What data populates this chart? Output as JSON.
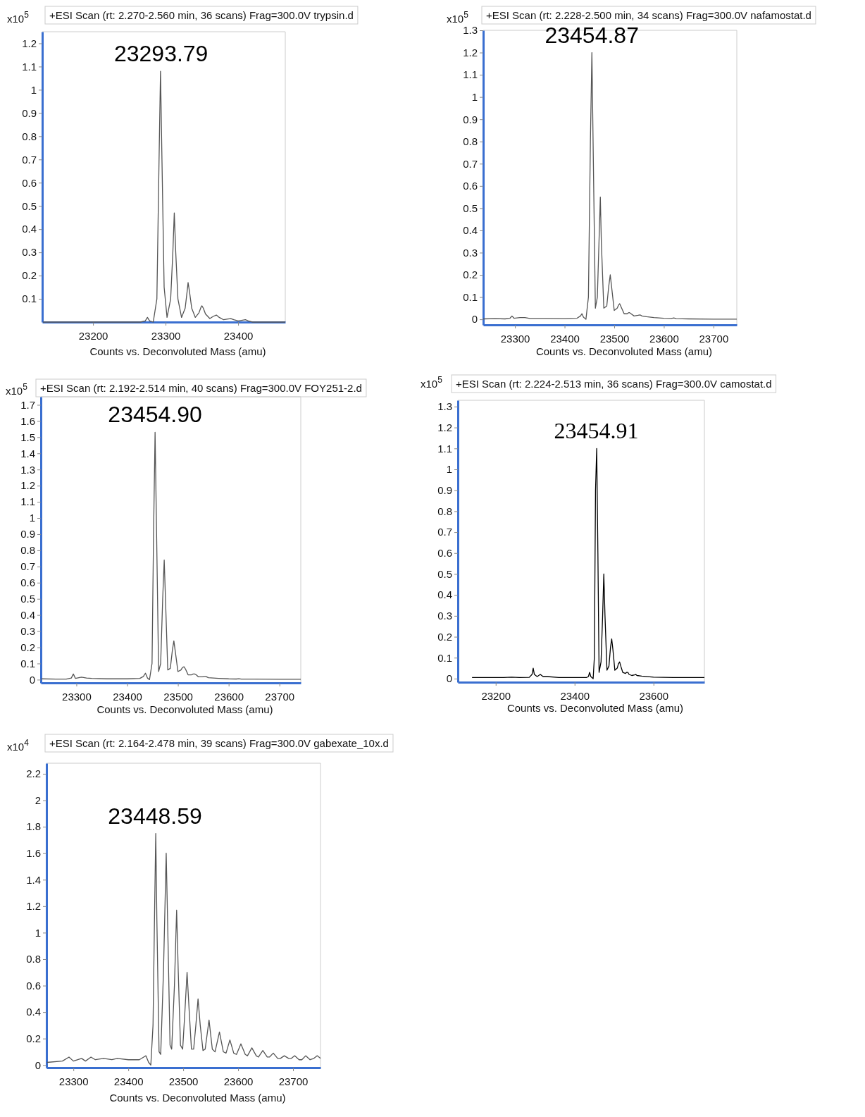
{
  "chart_data": [
    {
      "type": "line",
      "title": "+ESI Scan (rt: 2.270-2.560 min, 36 scans) Frag=300.0V trypsin.d",
      "xlabel": "Counts vs. Deconvoluted Mass (amu)",
      "ylabel": "x10$^{5}$",
      "annotations": [
        {
          "text": "23293.79",
          "x": 23293.79,
          "y": 1.08
        }
      ],
      "xlim": [
        23130,
        23465
      ],
      "ylim": [
        0,
        1.25
      ],
      "xticks": [
        23200,
        23300,
        23400
      ],
      "yticks": [
        0.1,
        0.2,
        0.3,
        0.4,
        0.5,
        0.6,
        0.7,
        0.8,
        0.9,
        1,
        1.1,
        1.2
      ],
      "series": [
        {
          "color": "#555555",
          "x": [
            23131,
            23200,
            23265,
            23272,
            23275,
            23278,
            23283,
            23288,
            23291,
            23293,
            23295,
            23298,
            23302,
            23307,
            23310,
            23312,
            23314,
            23317,
            23322,
            23327,
            23330,
            23331,
            23333,
            23336,
            23341,
            23346,
            23349,
            23350,
            23352,
            23355,
            23361,
            23366,
            23370,
            23374,
            23380,
            23386,
            23390,
            23394,
            23400,
            23406,
            23410,
            23414,
            23420,
            23465
          ],
          "values": [
            0,
            0,
            0,
            0.005,
            0.02,
            0.005,
            0,
            0.1,
            0.7,
            1.08,
            0.7,
            0.15,
            0.02,
            0.1,
            0.3,
            0.47,
            0.3,
            0.1,
            0.02,
            0.06,
            0.14,
            0.17,
            0.13,
            0.06,
            0.02,
            0.04,
            0.065,
            0.07,
            0.06,
            0.035,
            0.015,
            0.025,
            0.03,
            0.02,
            0.01,
            0.013,
            0.015,
            0.01,
            0.005,
            0.008,
            0.01,
            0.005,
            0,
            0
          ]
        }
      ]
    },
    {
      "type": "line",
      "title": "+ESI Scan (rt: 2.228-2.500 min, 34 scans) Frag=300.0V nafamostat.d",
      "xlabel": "Counts vs. Deconvoluted Mass (amu)",
      "ylabel": "x10$^{5}$",
      "annotations": [
        {
          "text": "23454.87",
          "x": 23454.87,
          "y": 1.2
        }
      ],
      "xlim": [
        23236,
        23747
      ],
      "ylim": [
        -0.025,
        1.3
      ],
      "xticks": [
        23300,
        23400,
        23500,
        23600,
        23700
      ],
      "yticks": [
        0,
        0.1,
        0.2,
        0.3,
        0.4,
        0.5,
        0.6,
        0.7,
        0.8,
        0.9,
        1,
        1.1,
        1.2,
        1.3
      ],
      "series": [
        {
          "color": "#555555",
          "x": [
            23236,
            23260,
            23280,
            23290,
            23294,
            23298,
            23310,
            23320,
            23330,
            23360,
            23400,
            23425,
            23432,
            23435,
            23438,
            23443,
            23448,
            23452,
            23455,
            23458,
            23462,
            23466,
            23470,
            23472,
            23474,
            23479,
            23485,
            23489,
            23492,
            23495,
            23500,
            23506,
            23509,
            23511,
            23514,
            23520,
            23526,
            23529,
            23531,
            23534,
            23540,
            23548,
            23552,
            23556,
            23565,
            23580,
            23600,
            23615,
            23620,
            23625,
            23650,
            23700,
            23747
          ],
          "values": [
            0.002,
            0.003,
            0.002,
            0.005,
            0.015,
            0.005,
            0.008,
            0.008,
            0.004,
            0.004,
            0.003,
            0.005,
            0.015,
            0.025,
            0.01,
            0.0,
            0.1,
            0.8,
            1.2,
            0.7,
            0.05,
            0.1,
            0.4,
            0.55,
            0.35,
            0.05,
            0.06,
            0.15,
            0.2,
            0.14,
            0.04,
            0.05,
            0.065,
            0.07,
            0.055,
            0.025,
            0.025,
            0.03,
            0.03,
            0.025,
            0.015,
            0.018,
            0.02,
            0.015,
            0.012,
            0.008,
            0.005,
            0.004,
            0.006,
            0.003,
            0.002,
            0.001,
            0.001
          ]
        }
      ]
    },
    {
      "type": "line",
      "title": "+ESI Scan (rt: 2.192-2.514 min, 40 scans) Frag=300.0V FOY251-2.d",
      "xlabel": "Counts vs. Deconvoluted Mass (amu)",
      "ylabel": "x10$^{5}$",
      "annotations": [
        {
          "text": "23454.90",
          "x": 23454.9,
          "y": 1.53
        }
      ],
      "xlim": [
        23230,
        23742
      ],
      "ylim": [
        -0.02,
        1.75
      ],
      "xticks": [
        23300,
        23400,
        23500,
        23600,
        23700
      ],
      "yticks": [
        0,
        0.1,
        0.2,
        0.3,
        0.4,
        0.5,
        0.6,
        0.7,
        0.8,
        0.9,
        1,
        1.1,
        1.2,
        1.3,
        1.4,
        1.5,
        1.6,
        1.7
      ],
      "series": [
        {
          "color": "#555555",
          "x": [
            23231,
            23260,
            23280,
            23290,
            23294,
            23298,
            23310,
            23320,
            23330,
            23360,
            23400,
            23425,
            23432,
            23436,
            23440,
            23444,
            23449,
            23452,
            23455,
            23458,
            23462,
            23466,
            23470,
            23473,
            23476,
            23480,
            23485,
            23489,
            23492,
            23495,
            23500,
            23506,
            23509,
            23512,
            23515,
            23520,
            23527,
            23530,
            23533,
            23536,
            23540,
            23548,
            23552,
            23555,
            23560,
            23580,
            23600,
            23615,
            23620,
            23625,
            23650,
            23700,
            23742
          ],
          "values": [
            0.005,
            0.003,
            0.003,
            0.01,
            0.035,
            0.008,
            0.015,
            0.01,
            0.008,
            0.005,
            0.005,
            0.008,
            0.02,
            0.04,
            0.01,
            0.0,
            0.1,
            0.9,
            1.53,
            0.9,
            0.05,
            0.1,
            0.5,
            0.74,
            0.45,
            0.06,
            0.07,
            0.18,
            0.24,
            0.17,
            0.05,
            0.06,
            0.075,
            0.08,
            0.065,
            0.03,
            0.03,
            0.035,
            0.035,
            0.03,
            0.018,
            0.018,
            0.02,
            0.02,
            0.012,
            0.008,
            0.005,
            0.004,
            0.006,
            0.003,
            0.003,
            0.002,
            0.002
          ]
        }
      ]
    },
    {
      "type": "line",
      "title": "+ESI Scan (rt: 2.224-2.513 min, 36 scans) Frag=300.0V camostat.d",
      "xlabel": "Counts vs. Deconvoluted Mass (amu)",
      "ylabel": "x10$^{5}$",
      "annotations": [
        {
          "text": "23454.91",
          "x": 23454.91,
          "y": 1.1
        }
      ],
      "xlim": [
        23104,
        23729
      ],
      "ylim": [
        -0.017,
        1.33
      ],
      "xticks": [
        23200,
        23400,
        23600
      ],
      "yticks": [
        0,
        0.1,
        0.2,
        0.3,
        0.4,
        0.5,
        0.6,
        0.7,
        0.8,
        0.9,
        1,
        1.1,
        1.2,
        1.3
      ],
      "series": [
        {
          "color": "#000000",
          "x": [
            23140,
            23180,
            23220,
            23240,
            23260,
            23285,
            23292,
            23295,
            23298,
            23305,
            23313,
            23320,
            23330,
            23360,
            23400,
            23430,
            23435,
            23438,
            23441,
            23447,
            23450,
            23453,
            23456,
            23459,
            23462,
            23467,
            23471,
            23474,
            23477,
            23482,
            23487,
            23491,
            23494,
            23497,
            23502,
            23508,
            23511,
            23514,
            23517,
            23522,
            23529,
            23532,
            23535,
            23538,
            23545,
            23552,
            23555,
            23558,
            23570,
            23600,
            23650,
            23700,
            23729
          ],
          "values": [
            0.005,
            0.005,
            0.005,
            0.007,
            0.005,
            0.006,
            0.02,
            0.05,
            0.02,
            0.01,
            0.02,
            0.01,
            0.01,
            0.005,
            0.005,
            0.005,
            0.01,
            0.03,
            0.01,
            0.0,
            0.1,
            0.9,
            1.1,
            0.6,
            0.03,
            0.08,
            0.3,
            0.5,
            0.3,
            0.04,
            0.06,
            0.15,
            0.19,
            0.14,
            0.04,
            0.05,
            0.07,
            0.08,
            0.06,
            0.03,
            0.025,
            0.03,
            0.03,
            0.02,
            0.015,
            0.018,
            0.02,
            0.015,
            0.012,
            0.007,
            0.005,
            0.005,
            0.005
          ]
        }
      ]
    },
    {
      "type": "line",
      "title": "+ESI Scan (rt: 2.164-2.478 min, 39 scans) Frag=300.0V gabexate_10x.d",
      "xlabel": "Counts vs. Deconvoluted Mass (amu)",
      "ylabel": "x10$^{4}$",
      "annotations": [
        {
          "text": "23448.59",
          "x": 23448.59,
          "y": 1.75
        }
      ],
      "xlim": [
        23251,
        23750
      ],
      "ylim": [
        -0.02,
        2.28
      ],
      "xticks": [
        23300,
        23400,
        23500,
        23600,
        23700
      ],
      "yticks": [
        0,
        0.2,
        0.4,
        0.6,
        0.8,
        1,
        1.2,
        1.4,
        1.6,
        1.8,
        2,
        2.2
      ],
      "series": [
        {
          "color": "#555555",
          "x": [
            23252,
            23280,
            23292,
            23300,
            23315,
            23322,
            23332,
            23340,
            23355,
            23370,
            23380,
            23400,
            23420,
            23428,
            23432,
            23437,
            23441,
            23445,
            23448,
            23450,
            23452,
            23456,
            23459,
            23464,
            23469,
            23472,
            23476,
            23479,
            23484,
            23488,
            23491,
            23495,
            23499,
            23503,
            23507,
            23511,
            23515,
            23519,
            23523,
            23527,
            23531,
            23536,
            23540,
            23547,
            23553,
            23558,
            23566,
            23573,
            23578,
            23585,
            23592,
            23597,
            23605,
            23613,
            23617,
            23625,
            23633,
            23637,
            23645,
            23653,
            23657,
            23664,
            23672,
            23677,
            23684,
            23692,
            23697,
            23703,
            23711,
            23716,
            23723,
            23731,
            23738,
            23744,
            23750
          ],
          "values": [
            0.02,
            0.03,
            0.06,
            0.03,
            0.05,
            0.03,
            0.06,
            0.04,
            0.05,
            0.04,
            0.05,
            0.04,
            0.04,
            0.06,
            0.07,
            0.02,
            0.0,
            0.3,
            1.2,
            1.75,
            1.1,
            0.1,
            0.08,
            0.7,
            1.6,
            1.0,
            0.15,
            0.12,
            0.6,
            1.17,
            0.7,
            0.15,
            0.12,
            0.4,
            0.7,
            0.4,
            0.12,
            0.12,
            0.3,
            0.5,
            0.3,
            0.11,
            0.12,
            0.34,
            0.12,
            0.1,
            0.25,
            0.1,
            0.09,
            0.19,
            0.09,
            0.08,
            0.16,
            0.08,
            0.07,
            0.13,
            0.07,
            0.06,
            0.11,
            0.06,
            0.06,
            0.09,
            0.05,
            0.05,
            0.07,
            0.05,
            0.05,
            0.07,
            0.04,
            0.04,
            0.07,
            0.04,
            0.05,
            0.07,
            0.05
          ]
        }
      ]
    }
  ]
}
